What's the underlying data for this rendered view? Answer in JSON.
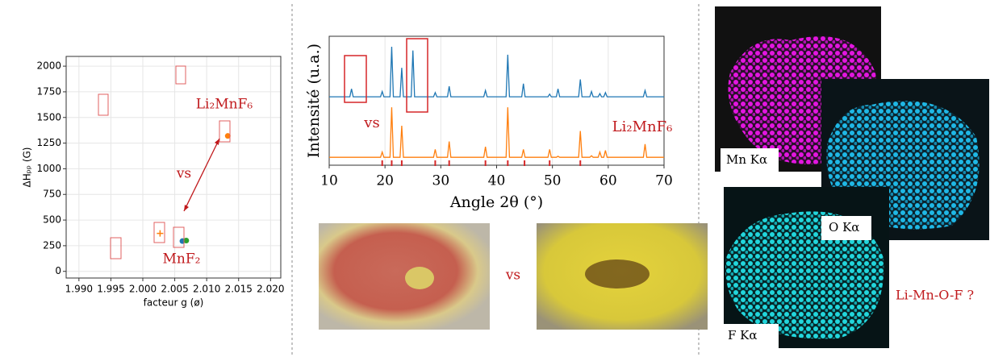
{
  "chart_data": [
    {
      "type": "scatter",
      "xlabel": "facteur g (ø)",
      "ylabel": "ΔHₚₚ (G)",
      "xlim": [
        1.988,
        2.0216
      ],
      "ylim": [
        -65,
        2095
      ],
      "xticks": [
        {
          "value": 1.99,
          "label": "1.990"
        },
        {
          "value": 1.995,
          "label": "1.995"
        },
        {
          "value": 2.0,
          "label": "2.000"
        },
        {
          "value": 2.005,
          "label": "2.005"
        },
        {
          "value": 2.01,
          "label": "2.010"
        },
        {
          "value": 2.015,
          "label": "2.015"
        },
        {
          "value": 2.02,
          "label": "2.020"
        }
      ],
      "yticks": [
        0,
        250,
        500,
        750,
        1000,
        1250,
        1500,
        1750,
        2000
      ],
      "grid": true,
      "series": [
        {
          "color": "#ff7f0e",
          "marker": "circle",
          "x": [
            2.0133
          ],
          "values": [
            1320
          ]
        },
        {
          "color": "#ff7f0e",
          "marker": "plus",
          "x": [
            2.0027
          ],
          "values": [
            370
          ]
        },
        {
          "color": "#1f77b4",
          "marker": "circle",
          "x": [
            2.0062
          ],
          "values": [
            295
          ]
        },
        {
          "color": "#2ca02c",
          "marker": "circle",
          "x": [
            2.0068
          ],
          "values": [
            300
          ]
        }
      ],
      "annotations": [
        "Li₂MnF₆",
        "vs",
        "MnF₂"
      ]
    },
    {
      "type": "line",
      "xlabel": "Angle 2θ (°)",
      "ylabel": "Intensité (u.a.)",
      "xlim": [
        10,
        70
      ],
      "ylim": [
        -0.15,
        2.3
      ],
      "xticks": [
        10,
        20,
        30,
        40,
        50,
        60,
        70
      ],
      "grid": true,
      "x": [
        10,
        13.7,
        14,
        14.3,
        19.2,
        19.5,
        19.8,
        20.9,
        21.2,
        21.5,
        22.7,
        23,
        23.3,
        24.7,
        25,
        25.3,
        28.7,
        29,
        29.3,
        31.2,
        31.5,
        31.8,
        37.7,
        38,
        38.3,
        41.7,
        42,
        42.3,
        44.5,
        44.8,
        45.1,
        49.2,
        49.5,
        49.8,
        50.7,
        51,
        51.3,
        54.7,
        55,
        55.3,
        56.7,
        57,
        57.3,
        58.2,
        58.5,
        58.8,
        59.2,
        59.5,
        59.8,
        66.3,
        66.6,
        66.9,
        70
      ],
      "series": [
        {
          "color": "#1f77b4",
          "values": [
            1.15,
            1.15,
            1.3,
            1.15,
            1.15,
            1.25,
            1.15,
            1.15,
            2.1,
            1.15,
            1.15,
            1.7,
            1.15,
            1.15,
            2.03,
            1.15,
            1.15,
            1.23,
            1.15,
            1.15,
            1.35,
            1.15,
            1.15,
            1.27,
            1.15,
            1.15,
            1.95,
            1.15,
            1.15,
            1.4,
            1.15,
            1.15,
            1.2,
            1.15,
            1.15,
            1.3,
            1.15,
            1.15,
            1.48,
            1.15,
            1.15,
            1.25,
            1.15,
            1.15,
            1.21,
            1.15,
            1.15,
            1.23,
            1.15,
            1.15,
            1.27,
            1.15,
            1.15
          ]
        },
        {
          "color": "#ff7f0e",
          "values": [
            0,
            0,
            0,
            0,
            0,
            0.1,
            0,
            0,
            0.95,
            0,
            0,
            0.6,
            0,
            0,
            0,
            0,
            0,
            0.15,
            0,
            0,
            0.3,
            0,
            0,
            0.2,
            0,
            0,
            0.95,
            0,
            0,
            0.15,
            0,
            0,
            0.15,
            0,
            0,
            0.02,
            0,
            0,
            0.5,
            0,
            0,
            0.03,
            0,
            0,
            0.1,
            0,
            0,
            0.13,
            0,
            0,
            0.25,
            0,
            0
          ]
        }
      ],
      "reference_peaks": [
        19.5,
        21.2,
        23,
        29,
        31.5,
        38,
        42,
        45,
        49.5,
        55
      ],
      "reference_color": "#d62728",
      "annotations": [
        "vs",
        "Li₂MnF₆"
      ]
    }
  ],
  "photos": {
    "separator": "vs"
  },
  "edx_maps": {
    "labels": [
      "Mn Kα",
      "O Kα",
      "F Kα"
    ],
    "note": "Li-Mn-O-F ?"
  }
}
